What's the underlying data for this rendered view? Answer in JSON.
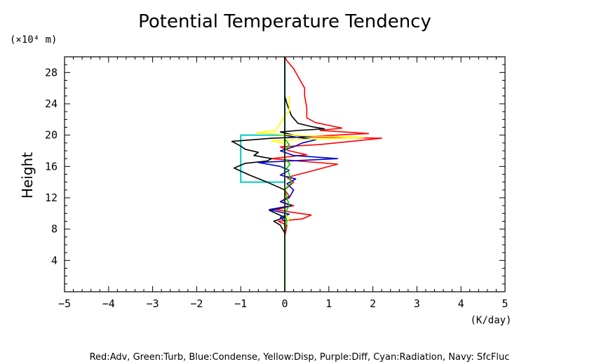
{
  "chart_data": {
    "type": "line",
    "title": "Potential Temperature Tendency",
    "ylabel": "Height",
    "yunit": "(×10⁴ m)",
    "xunit": "(K/day)",
    "xlim": [
      -5,
      5
    ],
    "ylim": [
      0,
      30000
    ],
    "xticks": [
      -5,
      -4,
      -3,
      -2,
      -1,
      0,
      1,
      2,
      3,
      4,
      5
    ],
    "xtick_labels": [
      "−5",
      "−4",
      "−3",
      "−2",
      "−1",
      "0",
      "1",
      "2",
      "3",
      "4",
      "5"
    ],
    "yticks": [
      4000,
      8000,
      12000,
      16000,
      20000,
      24000,
      28000
    ],
    "ytick_labels": [
      "4",
      "8",
      "12",
      "16",
      "20",
      "24",
      "28"
    ],
    "grid": false,
    "legend_text": "Red:Adv, Green:Turb, Blue:Condense, Yellow:Disp, Purple:Diff, Cyan:Radiation, Navy: SfcFluc",
    "series": [
      {
        "color": "#ff0000",
        "points": [
          [
            0,
            0
          ],
          [
            0,
            7000
          ],
          [
            0.05,
            8500
          ],
          [
            -0.15,
            9000
          ],
          [
            0.4,
            9300
          ],
          [
            0.6,
            9800
          ],
          [
            0.1,
            10200
          ],
          [
            -0.2,
            10500
          ],
          [
            0.2,
            11000
          ],
          [
            -0.1,
            11500
          ],
          [
            0.1,
            12200
          ],
          [
            0,
            13000
          ],
          [
            0.2,
            14000
          ],
          [
            0.05,
            14600
          ],
          [
            0.6,
            15400
          ],
          [
            1.2,
            16300
          ],
          [
            0.3,
            16700
          ],
          [
            -0.3,
            17000
          ],
          [
            0.5,
            17500
          ],
          [
            0.1,
            18000
          ],
          [
            -0.1,
            18500
          ],
          [
            0.8,
            18800
          ],
          [
            2.2,
            19600
          ],
          [
            0.4,
            19800
          ],
          [
            1.9,
            20200
          ],
          [
            0.8,
            20600
          ],
          [
            1.3,
            20900
          ],
          [
            0.7,
            21600
          ],
          [
            0.5,
            22200
          ],
          [
            0.5,
            23500
          ],
          [
            0.45,
            25000
          ],
          [
            0.45,
            26000
          ],
          [
            0.35,
            27000
          ],
          [
            0.2,
            28500
          ],
          [
            0.05,
            29500
          ],
          [
            0,
            30000
          ]
        ]
      },
      {
        "color": "#000000",
        "points": [
          [
            0,
            0
          ],
          [
            0,
            7500
          ],
          [
            -0.1,
            8500
          ],
          [
            -0.25,
            9000
          ],
          [
            0,
            9500
          ],
          [
            -0.35,
            10400
          ],
          [
            0,
            10800
          ],
          [
            0,
            12000
          ],
          [
            0,
            13000
          ],
          [
            -0.4,
            14000
          ],
          [
            -0.8,
            14900
          ],
          [
            -1.15,
            15800
          ],
          [
            -0.9,
            16400
          ],
          [
            -0.4,
            16700
          ],
          [
            -0.3,
            17000
          ],
          [
            -0.7,
            17400
          ],
          [
            -0.6,
            17800
          ],
          [
            -0.9,
            18200
          ],
          [
            -1.0,
            18600
          ],
          [
            -1.2,
            19200
          ],
          [
            -0.3,
            19600
          ],
          [
            0.6,
            19800
          ],
          [
            0.2,
            20000
          ],
          [
            -0.1,
            20400
          ],
          [
            0.3,
            20600
          ],
          [
            0.9,
            20800
          ],
          [
            0.6,
            21100
          ],
          [
            0.3,
            21500
          ],
          [
            0.15,
            22500
          ],
          [
            0.05,
            24000
          ],
          [
            0,
            25000
          ],
          [
            0,
            30000
          ]
        ]
      },
      {
        "color": "#0000cc",
        "points": [
          [
            0,
            0
          ],
          [
            0,
            7000
          ],
          [
            0,
            9000
          ],
          [
            -0.1,
            9500
          ],
          [
            0.1,
            9900
          ],
          [
            -0.35,
            10500
          ],
          [
            0.15,
            11000
          ],
          [
            -0.1,
            11500
          ],
          [
            0.1,
            12000
          ],
          [
            0.2,
            13000
          ],
          [
            0.05,
            13800
          ],
          [
            0.25,
            14400
          ],
          [
            -0.1,
            14900
          ],
          [
            0.1,
            15500
          ],
          [
            -0.1,
            16000
          ],
          [
            -0.6,
            16500
          ],
          [
            1.2,
            17000
          ],
          [
            0.2,
            17400
          ],
          [
            -0.1,
            18000
          ],
          [
            0.2,
            18500
          ],
          [
            0.4,
            19000
          ],
          [
            0.7,
            19400
          ],
          [
            0.3,
            19700
          ],
          [
            0,
            20000
          ],
          [
            0,
            30000
          ]
        ]
      },
      {
        "color": "#ffff00",
        "points": [
          [
            0,
            0
          ],
          [
            0,
            7500
          ],
          [
            0,
            8500
          ],
          [
            0.1,
            9300
          ],
          [
            0,
            10000
          ],
          [
            0,
            11000
          ],
          [
            0,
            12000
          ],
          [
            0,
            13000
          ],
          [
            0,
            14000
          ],
          [
            0,
            15000
          ],
          [
            0,
            16000
          ],
          [
            0,
            17000
          ],
          [
            0,
            18000
          ],
          [
            0.1,
            18800
          ],
          [
            -0.3,
            19300
          ],
          [
            1.8,
            19700
          ],
          [
            0.5,
            19900
          ],
          [
            -0.65,
            20300
          ],
          [
            -0.2,
            20600
          ],
          [
            -0.1,
            21500
          ],
          [
            0,
            22500
          ],
          [
            0.1,
            23000
          ],
          [
            0.1,
            25000
          ]
        ]
      },
      {
        "color": "#00cc00",
        "points": [
          [
            0,
            0
          ],
          [
            0,
            7000
          ],
          [
            0,
            8000
          ],
          [
            0.05,
            9000
          ],
          [
            0,
            10000
          ],
          [
            0.1,
            11000
          ],
          [
            0.05,
            12000
          ],
          [
            0,
            13000
          ],
          [
            0.15,
            14000
          ],
          [
            0.1,
            15000
          ],
          [
            0.05,
            15800
          ],
          [
            0.12,
            16300
          ],
          [
            0,
            17000
          ],
          [
            0,
            18000
          ],
          [
            0.1,
            18800
          ],
          [
            0,
            19500
          ],
          [
            0,
            20000
          ],
          [
            0,
            30000
          ]
        ]
      }
    ],
    "radiation_box": {
      "color": "#00cccc",
      "x": [
        -1,
        0
      ],
      "y": [
        14000,
        20000
      ]
    }
  }
}
